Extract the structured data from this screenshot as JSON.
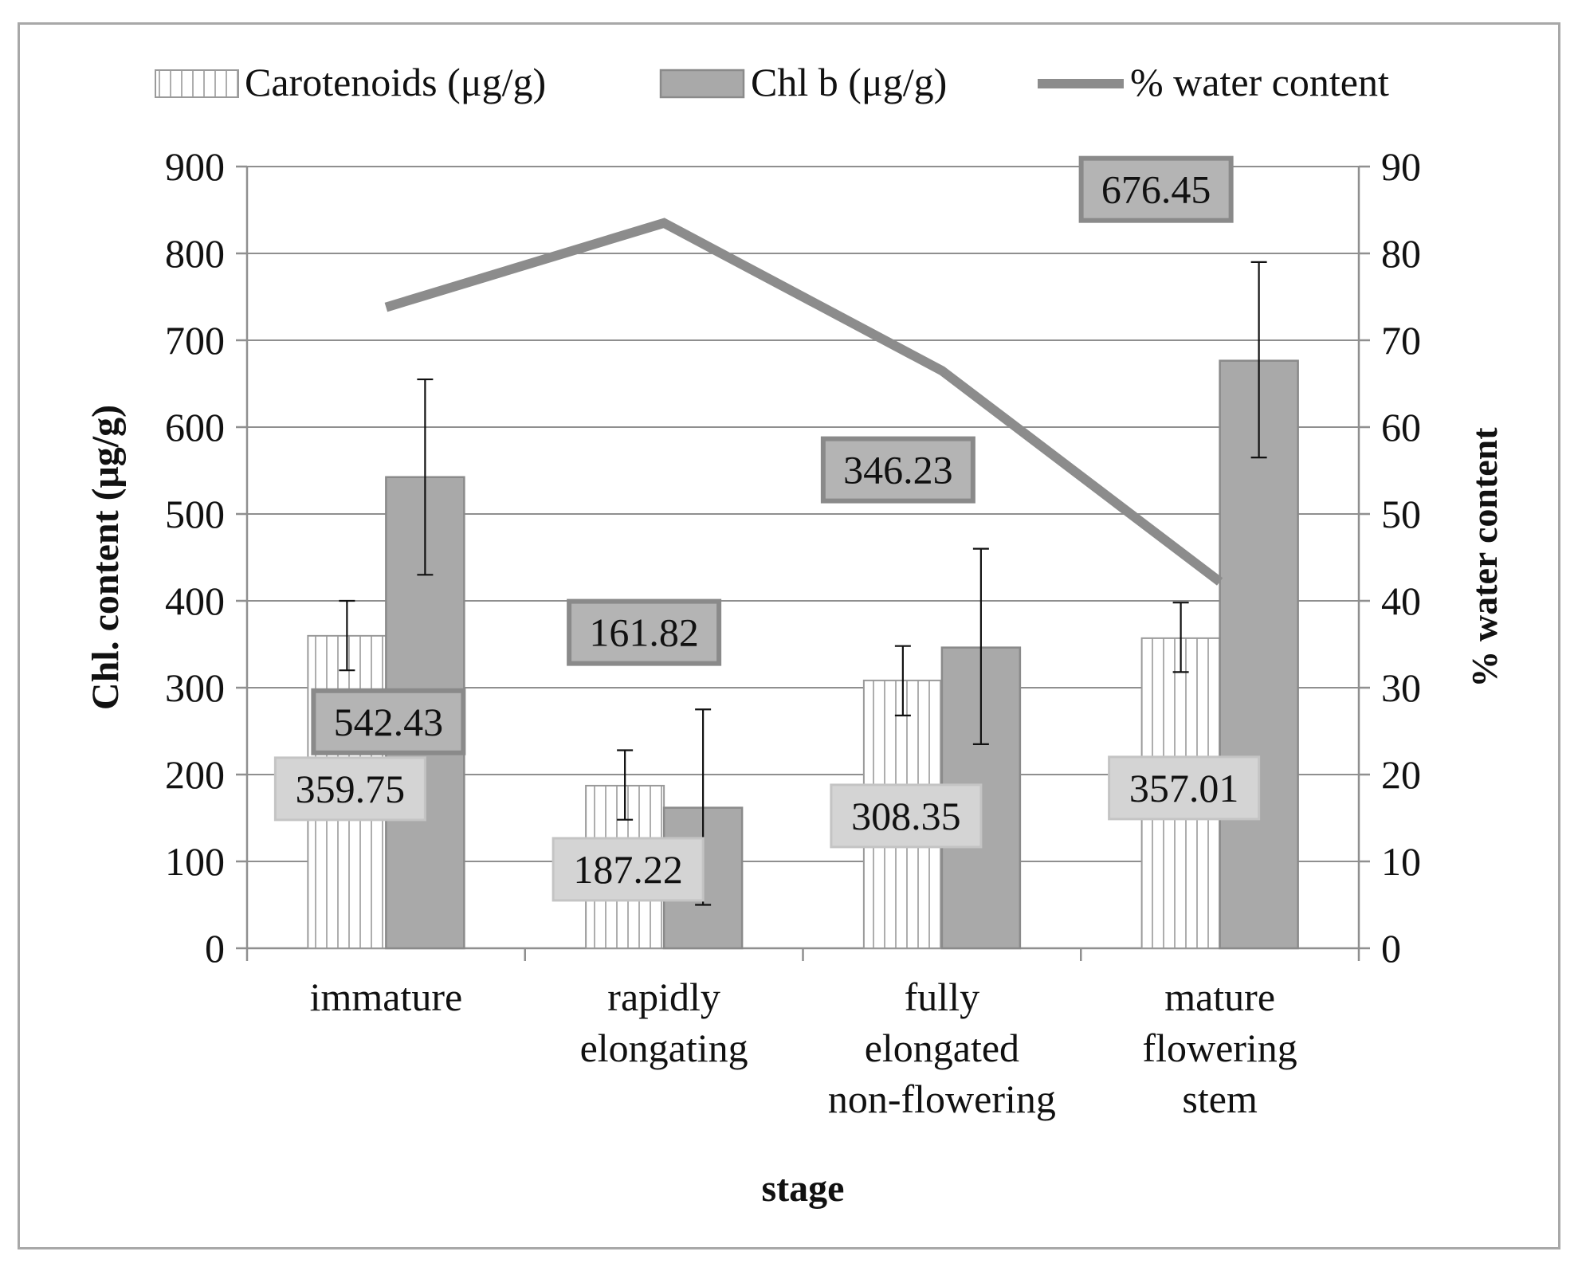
{
  "chart_data": {
    "type": "bar",
    "title": "",
    "xlabel": "stage",
    "ylabel": "Chl. content (μg/g)",
    "y2label": "% water content",
    "ylim": [
      0,
      900
    ],
    "y2lim": [
      0,
      90
    ],
    "yticks": [
      0,
      100,
      200,
      300,
      400,
      500,
      600,
      700,
      800,
      900
    ],
    "y2ticks": [
      0,
      10,
      20,
      30,
      40,
      50,
      60,
      70,
      80,
      90
    ],
    "grid": true,
    "legend_position": "top",
    "categories": [
      [
        "immature"
      ],
      [
        "rapidly",
        "elongating"
      ],
      [
        "fully",
        "elongated",
        "non-flowering"
      ],
      [
        "mature",
        "flowering",
        "stem"
      ]
    ],
    "series": [
      {
        "name": "Carotenoids (μg/g)",
        "kind": "bar",
        "pattern": "vertical-stripes",
        "values": [
          359.75,
          187.22,
          308.35,
          357.01
        ],
        "labels": [
          "359.75",
          "187.22",
          "308.35",
          "357.01"
        ],
        "error": [
          [
            320,
            400
          ],
          [
            148,
            228
          ],
          [
            268,
            348
          ],
          [
            318,
            398
          ]
        ]
      },
      {
        "name": "Chl b (μg/g)",
        "kind": "bar",
        "color": "#a9a9a9",
        "values": [
          542.43,
          161.82,
          346.23,
          676.45
        ],
        "labels": [
          "542.43",
          "161.82",
          "346.23",
          "676.45"
        ],
        "error": [
          [
            430,
            655
          ],
          [
            50,
            275
          ],
          [
            235,
            460
          ],
          [
            565,
            790
          ]
        ]
      },
      {
        "name": "% water content",
        "kind": "line",
        "axis": "right",
        "color": "#8c8c8c",
        "values": [
          73.8,
          83.5,
          66.5,
          42.2
        ]
      }
    ]
  }
}
